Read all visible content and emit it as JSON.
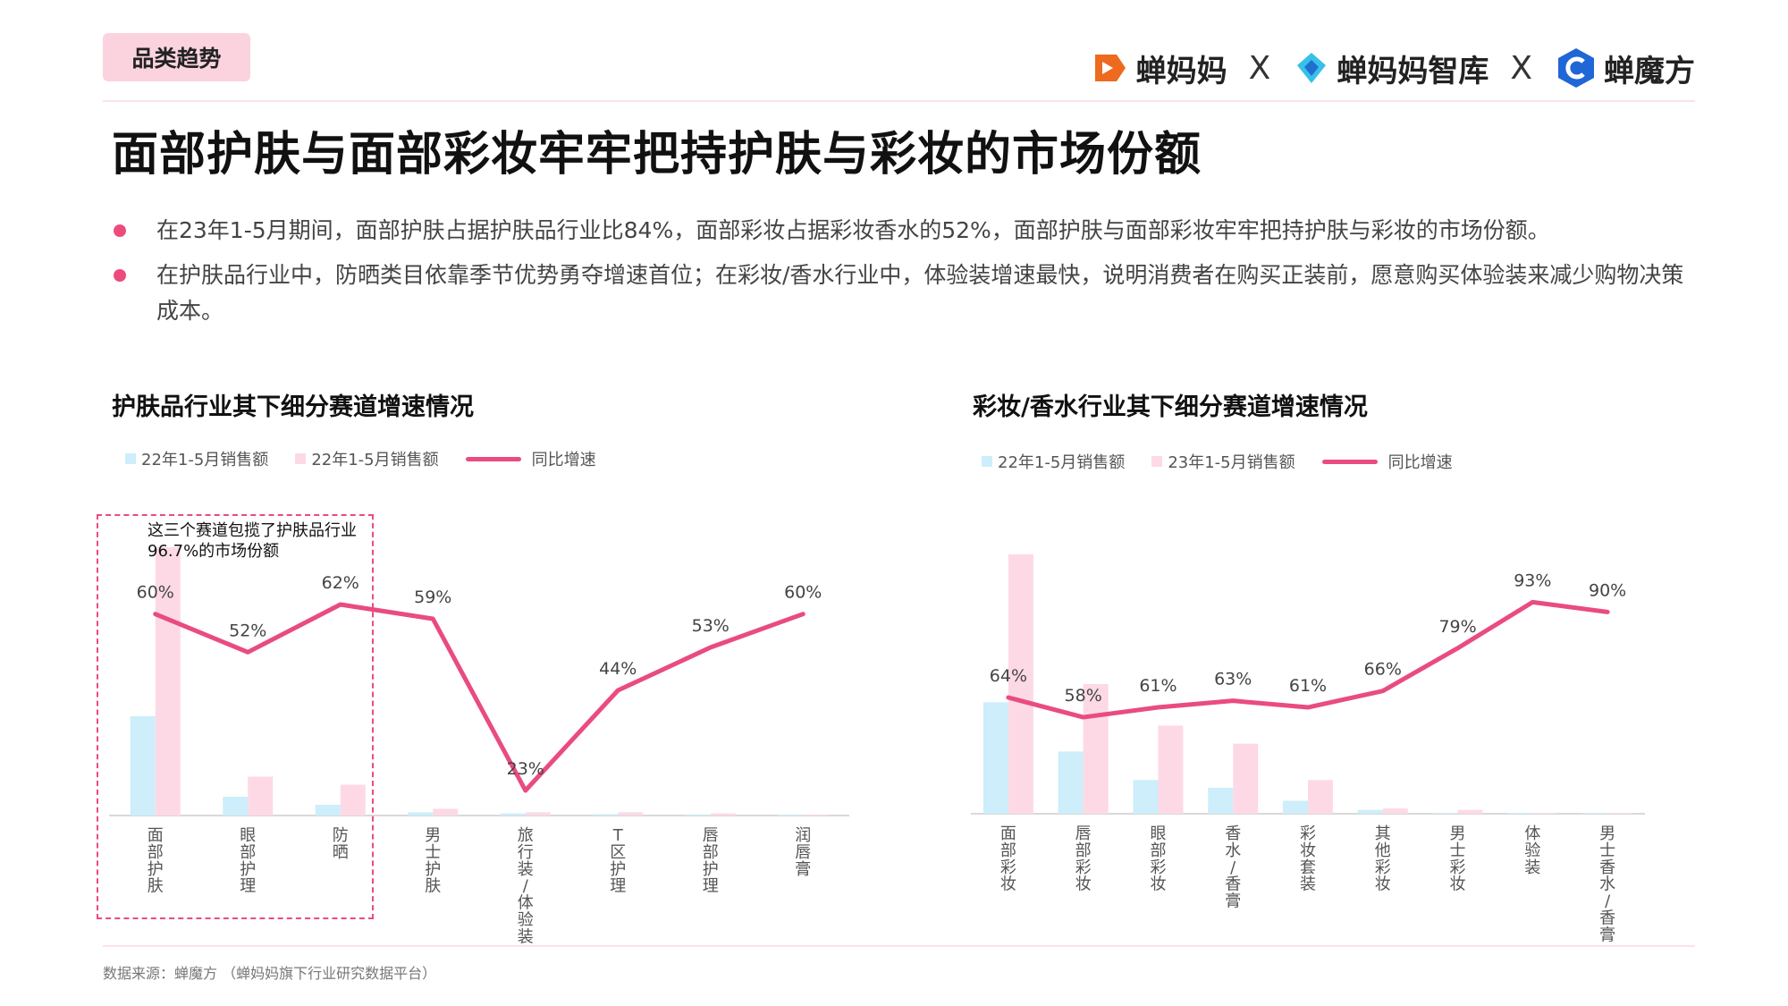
{
  "header": {
    "tag": "品类趋势",
    "logos": [
      "蝉妈妈",
      "蝉妈妈智库",
      "蝉魔方"
    ],
    "separator": "X"
  },
  "main_title": "面部护肤与面部彩妆牢牢把持护肤与彩妆的市场份额",
  "bullets": [
    "在23年1-5月期间，面部护肤占据护肤品行业比84%，面部彩妆占据彩妆香水的52%，面部护肤与面部彩妆牢牢把持护肤与彩妆的市场份额。",
    "在护肤品行业中，防晒类目依靠季节优势勇夺增速首位；在彩妆/香水行业中，体验装增速最快，说明消费者在购买正装前，愿意购买体验装来减少购物决策成本。"
  ],
  "callout": "这三个赛道包揽了护肤品行业96.7%的市场份额",
  "source": "数据来源：蝉魔方  （蝉妈妈旗下行业研究数据平台）",
  "colors": {
    "bar_a": "#cdeefa",
    "bar_b": "#fdd9e6",
    "line": "#e94b82",
    "accent": "#ee4b7d"
  },
  "chart_data": [
    {
      "type": "bar",
      "title": "护肤品行业其下细分赛道增速情况",
      "categories": [
        "面部护肤",
        "眼部护理",
        "防晒",
        "男士护肤",
        "旅行装/体验装",
        "T区护理",
        "唇部护理",
        "润唇膏"
      ],
      "series": [
        {
          "name": "22年1-5月销售额",
          "kind": "bar",
          "values": [
            37,
            7,
            4,
            1.2,
            0.8,
            0.5,
            0.4,
            0.2
          ]
        },
        {
          "name": "22年1-5月销售额",
          "kind": "bar",
          "values": [
            100,
            14.5,
            11.5,
            2.5,
            1.2,
            1.2,
            0.8,
            0.3
          ]
        },
        {
          "name": "同比增速",
          "kind": "line",
          "values": [
            60,
            52,
            62,
            59,
            23,
            44,
            53,
            60
          ],
          "labels": [
            "60%",
            "52%",
            "62%",
            "59%",
            "23%",
            "44%",
            "53%",
            "60%"
          ]
        }
      ],
      "line_range": [
        20,
        65
      ]
    },
    {
      "type": "bar",
      "title": "彩妆/香水行业其下细分赛道增速情况",
      "categories": [
        "面部彩妆",
        "唇部彩妆",
        "眼部彩妆",
        "香水/香膏",
        "彩妆套装",
        "其他彩妆",
        "男士彩妆",
        "体验装",
        "男士香水/香膏"
      ],
      "series": [
        {
          "name": "22年1-5月销售额",
          "kind": "bar",
          "values": [
            43,
            24,
            13,
            10,
            5,
            1.5,
            0.3,
            0.2,
            0.1
          ]
        },
        {
          "name": "23年1-5月销售额",
          "kind": "bar",
          "values": [
            100,
            50,
            34,
            27,
            13,
            2,
            1.5,
            0.3,
            0.2
          ]
        },
        {
          "name": "同比增速",
          "kind": "line",
          "values": [
            64,
            58,
            61,
            63,
            61,
            66,
            79,
            93,
            90
          ],
          "labels": [
            "64%",
            "58%",
            "61%",
            "63%",
            "61%",
            "66%",
            "79%",
            "93%",
            "90%"
          ]
        }
      ],
      "line_range": [
        30,
        98
      ]
    }
  ]
}
